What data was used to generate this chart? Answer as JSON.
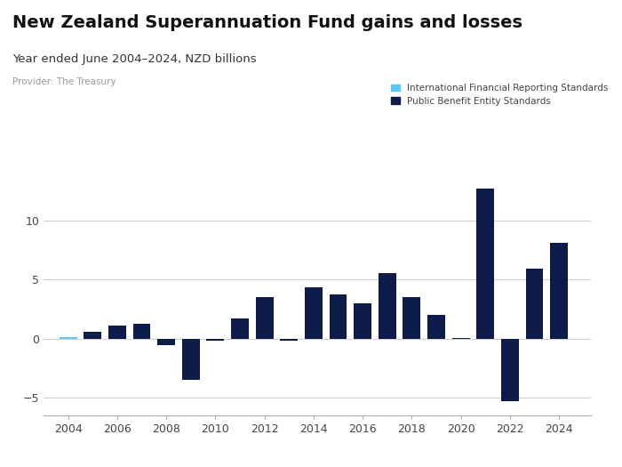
{
  "title": "New Zealand Superannuation Fund gains and losses",
  "subtitle": "Year ended June 2004–2024, NZD billions",
  "provider": "Provider: The Treasury",
  "legend_ifrs": "International Financial Reporting Standards",
  "legend_pbe": "Public Benefit Entity Standards",
  "years": [
    2004,
    2005,
    2006,
    2007,
    2008,
    2009,
    2010,
    2011,
    2012,
    2013,
    2014,
    2015,
    2016,
    2017,
    2018,
    2019,
    2020,
    2021,
    2022,
    2023,
    2024
  ],
  "values": [
    0.1,
    0.55,
    1.1,
    1.25,
    -0.55,
    -3.5,
    -0.15,
    1.7,
    3.5,
    -0.15,
    4.3,
    3.7,
    3.0,
    5.5,
    3.5,
    2.0,
    0.05,
    12.7,
    -5.3,
    5.9,
    8.1
  ],
  "color_dark_navy": "#0d1b4b",
  "color_light_blue": "#5bc8f5",
  "ylim": [
    -6.5,
    14
  ],
  "yticks": [
    -5,
    0,
    5,
    10
  ],
  "bg_color": "#ffffff",
  "grid_color": "#d0d0d0",
  "logo_bg": "#3d5a99",
  "title_fontsize": 14,
  "subtitle_fontsize": 9.5,
  "provider_fontsize": 7.5,
  "legend_fontsize": 7.5,
  "tick_fontsize": 9
}
